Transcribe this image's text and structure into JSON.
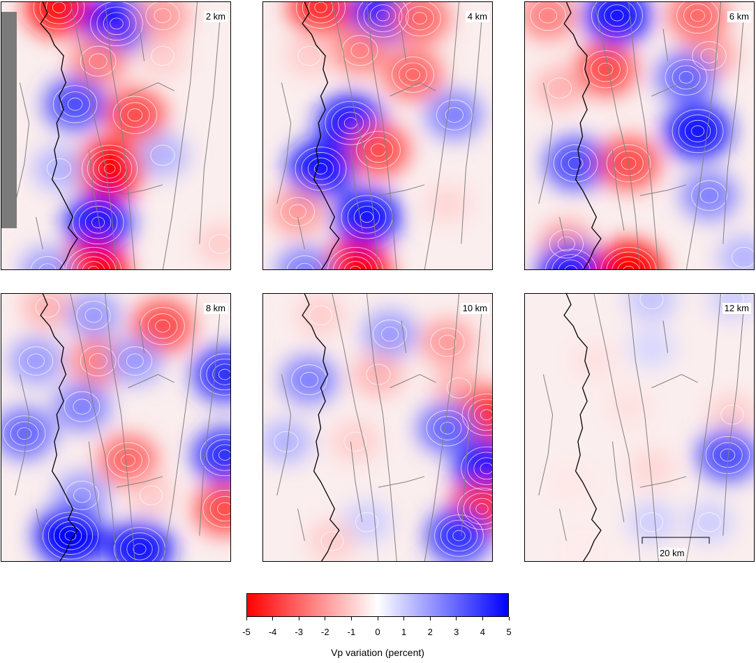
{
  "panels": [
    {
      "depth_label": "2 km",
      "has_mask": true,
      "anomalies": [
        [
          0.25,
          0.02,
          -4.5
        ],
        [
          0.5,
          0.08,
          4.8
        ],
        [
          0.7,
          0.05,
          -2.0
        ],
        [
          0.42,
          0.22,
          -2.5
        ],
        [
          0.7,
          0.2,
          -1.0
        ],
        [
          0.32,
          0.38,
          3.5
        ],
        [
          0.58,
          0.42,
          -3.5
        ],
        [
          0.47,
          0.62,
          -5.0
        ],
        [
          0.7,
          0.57,
          1.5
        ],
        [
          0.25,
          0.62,
          1.5
        ],
        [
          0.42,
          0.82,
          4.5
        ],
        [
          0.4,
          1.0,
          -5.0
        ],
        [
          0.2,
          1.0,
          2.0
        ],
        [
          0.95,
          0.9,
          -1.0
        ]
      ]
    },
    {
      "depth_label": "4 km",
      "has_mask": false,
      "anomalies": [
        [
          0.25,
          0.02,
          -4.0
        ],
        [
          0.52,
          0.05,
          4.5
        ],
        [
          0.68,
          0.06,
          -3.0
        ],
        [
          0.2,
          0.2,
          -1.0
        ],
        [
          0.42,
          0.18,
          -2.5
        ],
        [
          0.65,
          0.27,
          -3.0
        ],
        [
          0.38,
          0.45,
          4.5
        ],
        [
          0.83,
          0.42,
          2.5
        ],
        [
          0.5,
          0.55,
          -3.5
        ],
        [
          0.25,
          0.62,
          4.5
        ],
        [
          0.15,
          0.78,
          -2.0
        ],
        [
          0.45,
          0.8,
          4.5
        ],
        [
          0.4,
          1.0,
          -5.0
        ],
        [
          0.18,
          1.0,
          2.5
        ],
        [
          0.8,
          0.75,
          -0.8
        ]
      ]
    },
    {
      "depth_label": "6 km",
      "has_mask": false,
      "anomalies": [
        [
          0.1,
          0.05,
          -2.5
        ],
        [
          0.4,
          0.05,
          4.5
        ],
        [
          0.75,
          0.05,
          -3.0
        ],
        [
          0.8,
          0.2,
          -2.0
        ],
        [
          0.35,
          0.25,
          -3.5
        ],
        [
          0.7,
          0.28,
          3.0
        ],
        [
          0.15,
          0.32,
          -1.5
        ],
        [
          0.75,
          0.48,
          4.5
        ],
        [
          0.22,
          0.6,
          3.5
        ],
        [
          0.45,
          0.6,
          -3.5
        ],
        [
          0.8,
          0.72,
          2.5
        ],
        [
          0.18,
          0.9,
          -2.0
        ],
        [
          0.2,
          1.0,
          4.5
        ],
        [
          0.45,
          1.0,
          -5.0
        ],
        [
          0.95,
          0.95,
          1.5
        ]
      ]
    },
    {
      "depth_label": "8 km",
      "has_mask": false,
      "anomalies": [
        [
          0.2,
          0.05,
          -1.5
        ],
        [
          0.4,
          0.08,
          2.0
        ],
        [
          0.7,
          0.12,
          -3.5
        ],
        [
          0.15,
          0.25,
          2.0
        ],
        [
          0.42,
          0.25,
          -2.5
        ],
        [
          0.58,
          0.25,
          2.0
        ],
        [
          0.97,
          0.3,
          4.0
        ],
        [
          0.1,
          0.52,
          3.0
        ],
        [
          0.35,
          0.42,
          2.5
        ],
        [
          0.55,
          0.62,
          -3.0
        ],
        [
          0.35,
          0.75,
          2.0
        ],
        [
          0.97,
          0.6,
          4.0
        ],
        [
          0.97,
          0.8,
          -3.5
        ],
        [
          0.3,
          0.9,
          5.0
        ],
        [
          0.6,
          0.95,
          4.5
        ],
        [
          0.65,
          0.75,
          -1.0
        ]
      ]
    },
    {
      "depth_label": "10 km",
      "has_mask": false,
      "anomalies": [
        [
          0.25,
          0.08,
          -1.0
        ],
        [
          0.55,
          0.15,
          2.0
        ],
        [
          0.8,
          0.18,
          -2.0
        ],
        [
          0.2,
          0.32,
          2.5
        ],
        [
          0.5,
          0.3,
          -1.5
        ],
        [
          0.85,
          0.35,
          -1.5
        ],
        [
          0.97,
          0.45,
          -4.0
        ],
        [
          0.1,
          0.55,
          1.5
        ],
        [
          0.4,
          0.55,
          -1.0
        ],
        [
          0.8,
          0.5,
          3.0
        ],
        [
          0.97,
          0.65,
          4.5
        ],
        [
          0.95,
          0.8,
          -4.0
        ],
        [
          0.85,
          0.9,
          4.0
        ],
        [
          0.45,
          0.85,
          1.0
        ],
        [
          0.3,
          0.92,
          -1.0
        ]
      ]
    },
    {
      "depth_label": "12 km",
      "has_mask": false,
      "anomalies": [
        [
          0.55,
          0.02,
          1.2
        ],
        [
          0.9,
          0.02,
          1.0
        ],
        [
          0.3,
          0.25,
          -0.6
        ],
        [
          0.55,
          0.2,
          0.8
        ],
        [
          0.45,
          0.42,
          -0.6
        ],
        [
          0.9,
          0.45,
          -1.0
        ],
        [
          0.88,
          0.6,
          3.5
        ],
        [
          0.55,
          0.65,
          -0.8
        ],
        [
          0.2,
          0.7,
          -0.5
        ],
        [
          0.8,
          0.85,
          1.0
        ],
        [
          0.55,
          0.85,
          1.0
        ],
        [
          0.25,
          0.95,
          -0.4
        ]
      ]
    }
  ],
  "scale_bar": {
    "label": "20 km"
  },
  "colorbar": {
    "title": "Vp variation (percent)",
    "min": -5,
    "max": 5,
    "ticks": [
      "-5",
      "-4",
      "-3",
      "-2",
      "-1",
      "0",
      "1",
      "2",
      "3",
      "4",
      "5"
    ],
    "colors": {
      "negative": "#ff0000",
      "center": "#ffffff",
      "positive": "#0000ff"
    }
  },
  "colors": {
    "coastline": "#000000",
    "faults": "#808080",
    "contours": "#ffffff",
    "mask": "#7a7a7a"
  }
}
